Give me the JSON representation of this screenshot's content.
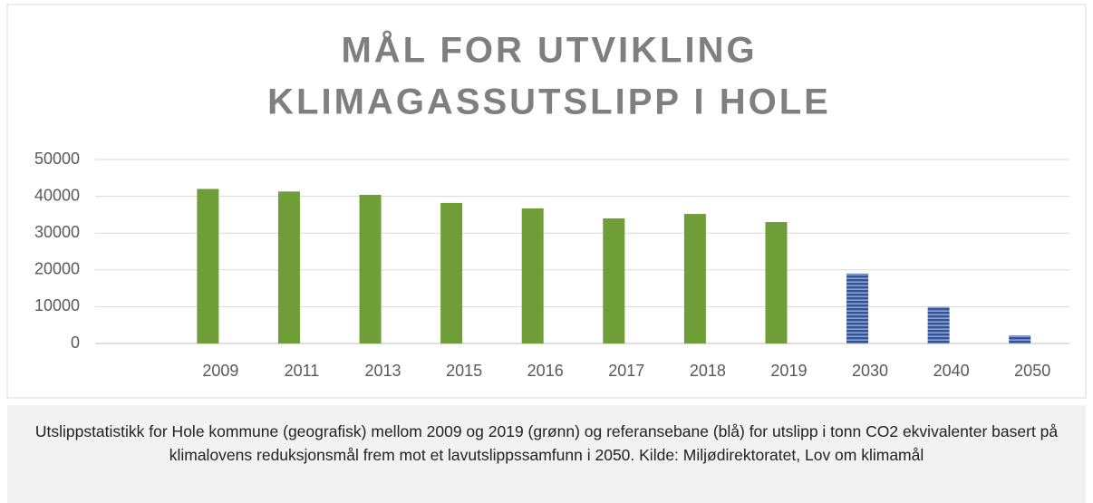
{
  "chart_data": {
    "type": "bar",
    "title_lines": [
      "MÅL FOR UTVIKLING",
      "KLIMAGASSUTSLIPP I HOLE"
    ],
    "categories": [
      null,
      "2009",
      "2011",
      "2013",
      "2015",
      "2016",
      "2017",
      "2018",
      "2019",
      "2030",
      "2040",
      "2050"
    ],
    "values": [
      null,
      42000,
      41300,
      40400,
      38200,
      36700,
      34000,
      35200,
      33000,
      19000,
      10000,
      2200
    ],
    "colors": [
      null,
      "#6f9e38",
      "#6f9e38",
      "#6f9e38",
      "#6f9e38",
      "#6f9e38",
      "#6f9e38",
      "#6f9e38",
      "#6f9e38",
      "#34549a",
      "#34549a",
      "#34549a"
    ],
    "hatch": [
      false,
      false,
      false,
      false,
      false,
      false,
      false,
      false,
      false,
      true,
      true,
      true
    ],
    "ylim": [
      0,
      50000
    ],
    "yticks": [
      0,
      10000,
      20000,
      30000,
      40000,
      50000
    ],
    "grid": true
  },
  "caption": "Utslippstatistikk for Hole kommune (geografisk) mellom 2009 og 2019 (grønn) og referansebane (blå) for utslipp i tonn CO2 ekvivalenter basert på klimalovens reduksjonsmål frem mot et lavutslippssamfunn i 2050. Kilde: Miljødirektoratet, Lov om klimamål"
}
